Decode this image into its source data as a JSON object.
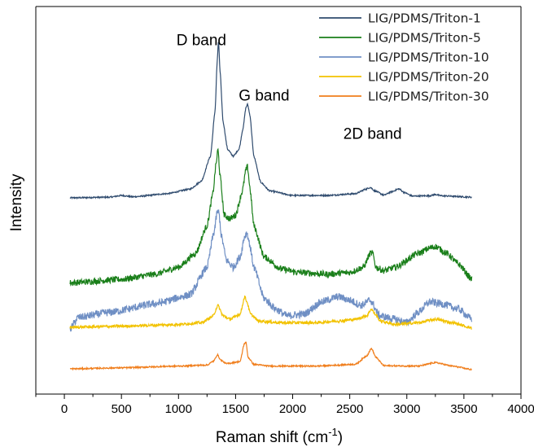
{
  "chart_data": {
    "type": "line",
    "xlabel": "Raman shift (cm",
    "xlabel_sup": "-1",
    "xlabel_suffix": ")",
    "ylabel": "Intensity",
    "xlim": [
      -250,
      4000
    ],
    "ylim": [
      0,
      1
    ],
    "x_ticks": [
      0,
      500,
      1000,
      1500,
      2000,
      2500,
      3000,
      3500,
      4000
    ],
    "x_tick_labels": [
      "0",
      "500",
      "1000",
      "1500",
      "2000",
      "2500",
      "3000",
      "3500",
      "4000"
    ],
    "grid": false,
    "legend_position": "top-right",
    "annotations": [
      {
        "text": "D band",
        "x": 1200,
        "y": 0.94
      },
      {
        "text": "G band",
        "x": 1750,
        "y": 0.78
      },
      {
        "text": "2D band",
        "x": 2700,
        "y": 0.67
      }
    ],
    "series": [
      {
        "name": "LIG/PDMS/Triton-1",
        "color": "#2f4b6e",
        "noise": 0.002,
        "x": [
          50,
          400,
          500,
          600,
          900,
          1100,
          1200,
          1280,
          1320,
          1340,
          1350,
          1365,
          1390,
          1430,
          1480,
          1530,
          1565,
          1590,
          1605,
          1625,
          1660,
          1720,
          1800,
          2000,
          2300,
          2550,
          2640,
          2680,
          2720,
          2800,
          2870,
          2930,
          2980,
          3050,
          3200,
          3250,
          3300,
          3570
        ],
        "y": [
          0.5,
          0.502,
          0.507,
          0.503,
          0.512,
          0.525,
          0.548,
          0.62,
          0.75,
          0.9,
          0.952,
          0.86,
          0.72,
          0.64,
          0.62,
          0.64,
          0.7,
          0.76,
          0.77,
          0.74,
          0.62,
          0.545,
          0.52,
          0.507,
          0.507,
          0.512,
          0.525,
          0.53,
          0.52,
          0.508,
          0.518,
          0.526,
          0.515,
          0.505,
          0.506,
          0.51,
          0.506,
          0.502
        ]
      },
      {
        "name": "LIG/PDMS/Triton-5",
        "color": "#1a7f1a",
        "noise": 0.009,
        "x": [
          50,
          500,
          800,
          1000,
          1150,
          1250,
          1300,
          1330,
          1345,
          1365,
          1400,
          1450,
          1500,
          1560,
          1590,
          1605,
          1625,
          1660,
          1750,
          1900,
          2050,
          2300,
          2500,
          2620,
          2680,
          2700,
          2730,
          2800,
          2900,
          3100,
          3200,
          3250,
          3350,
          3450,
          3570
        ],
        "y": [
          0.255,
          0.265,
          0.28,
          0.3,
          0.34,
          0.42,
          0.51,
          0.6,
          0.64,
          0.56,
          0.45,
          0.44,
          0.45,
          0.52,
          0.58,
          0.59,
          0.53,
          0.42,
          0.33,
          0.295,
          0.285,
          0.28,
          0.285,
          0.3,
          0.34,
          0.34,
          0.3,
          0.29,
          0.3,
          0.34,
          0.355,
          0.36,
          0.34,
          0.31,
          0.265
        ]
      },
      {
        "name": "LIG/PDMS/Triton-10",
        "color": "#6f8fc4",
        "noise": 0.011,
        "x": [
          50,
          120,
          400,
          800,
          1100,
          1250,
          1310,
          1340,
          1355,
          1375,
          1420,
          1480,
          1540,
          1580,
          1600,
          1620,
          1660,
          1750,
          1850,
          1950,
          2100,
          2250,
          2400,
          2500,
          2600,
          2680,
          2760,
          2900,
          3000,
          3100,
          3200,
          3300,
          3450,
          3570
        ],
        "y": [
          0.122,
          0.155,
          0.17,
          0.195,
          0.22,
          0.3,
          0.4,
          0.46,
          0.455,
          0.39,
          0.32,
          0.3,
          0.33,
          0.39,
          0.4,
          0.37,
          0.3,
          0.21,
          0.18,
          0.16,
          0.165,
          0.2,
          0.215,
          0.205,
          0.19,
          0.205,
          0.16,
          0.15,
          0.14,
          0.17,
          0.2,
          0.195,
          0.18,
          0.15
        ]
      },
      {
        "name": "LIG/PDMS/Triton-20",
        "color": "#f2c200",
        "noise": 0.004,
        "x": [
          50,
          500,
          1000,
          1200,
          1300,
          1345,
          1390,
          1450,
          1540,
          1580,
          1600,
          1630,
          1700,
          1900,
          2200,
          2400,
          2550,
          2650,
          2690,
          2720,
          2770,
          2900,
          3100,
          3250,
          3400,
          3570
        ],
        "y": [
          0.127,
          0.13,
          0.135,
          0.14,
          0.158,
          0.19,
          0.16,
          0.15,
          0.165,
          0.215,
          0.2,
          0.165,
          0.145,
          0.14,
          0.14,
          0.145,
          0.15,
          0.16,
          0.18,
          0.165,
          0.145,
          0.135,
          0.14,
          0.15,
          0.14,
          0.125
        ]
      },
      {
        "name": "LIG/PDMS/Triton-30",
        "color": "#f07e1c",
        "noise": 0.002,
        "x": [
          50,
          500,
          1000,
          1250,
          1310,
          1340,
          1370,
          1420,
          1540,
          1575,
          1590,
          1610,
          1660,
          1800,
          2200,
          2550,
          2650,
          2690,
          2730,
          2800,
          3100,
          3250,
          3400,
          3570
        ],
        "y": [
          0.007,
          0.01,
          0.015,
          0.018,
          0.03,
          0.048,
          0.032,
          0.022,
          0.028,
          0.078,
          0.085,
          0.04,
          0.02,
          0.015,
          0.015,
          0.02,
          0.045,
          0.066,
          0.04,
          0.016,
          0.015,
          0.025,
          0.015,
          0.005
        ]
      }
    ]
  }
}
